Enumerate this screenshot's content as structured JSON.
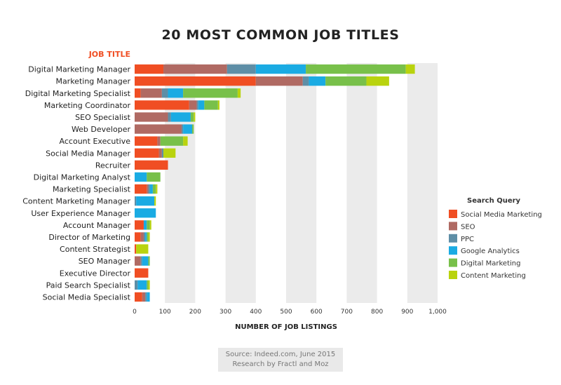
{
  "colors": {
    "Social Media Marketing": "#f04e23",
    "SEO": "#b06a63",
    "PPC": "#5e8ea6",
    "Google Analytics": "#1aabe3",
    "Digital Marketing": "#78c04a",
    "Content Marketing": "#b9d30e",
    "title": "#222222",
    "axis_title_accent": "#f04e23",
    "grid_band": "#ebebeb"
  },
  "chart_data": {
    "type": "bar",
    "orientation": "horizontal",
    "stacked": true,
    "title": "20 MOST COMMON JOB TITLES",
    "ylabel": "JOB TITLE",
    "xlabel": "NUMBER OF JOB LISTINGS",
    "xlim": [
      0,
      1000
    ],
    "xticks": [
      "0",
      "100",
      "200",
      "300",
      "400",
      "500",
      "600",
      "700",
      "800",
      "900",
      "1,000"
    ],
    "legend_title": "Search Query",
    "legend_position": "right",
    "grid": "alternating vertical bands",
    "categories": [
      "Digital Marketing Manager",
      "Marketing Manager",
      "Digital Marketing Specialist",
      "Marketing Coordinator",
      "SEO Specialist",
      "Web Developer",
      "Account Executive",
      "Social Media Manager",
      "Recruiter",
      "Digital Marketing Analyst",
      "Marketing Specialist",
      "Content Marketing Manager",
      "User Experience Manager",
      "Account Manager",
      "Director of Marketing",
      "Content Strategist",
      "SEO Manager",
      "Executive Director",
      "Paid Search Specialist",
      "Social Media Specialist"
    ],
    "series": [
      {
        "name": "Social Media Marketing",
        "values": [
          95,
          400,
          20,
          180,
          0,
          0,
          75,
          80,
          110,
          0,
          40,
          0,
          0,
          30,
          20,
          5,
          0,
          45,
          0,
          25
        ]
      },
      {
        "name": "SEO",
        "values": [
          210,
          155,
          70,
          25,
          110,
          155,
          10,
          10,
          0,
          0,
          5,
          0,
          0,
          0,
          10,
          0,
          20,
          0,
          0,
          10
        ]
      },
      {
        "name": "PPC",
        "values": [
          95,
          20,
          20,
          5,
          10,
          5,
          0,
          5,
          0,
          0,
          5,
          5,
          0,
          0,
          5,
          0,
          5,
          0,
          10,
          5
        ]
      },
      {
        "name": "Google Analytics",
        "values": [
          165,
          55,
          50,
          20,
          65,
          30,
          0,
          0,
          0,
          40,
          10,
          60,
          70,
          10,
          5,
          0,
          20,
          0,
          30,
          10
        ]
      },
      {
        "name": "Digital Marketing",
        "values": [
          330,
          135,
          180,
          45,
          10,
          5,
          75,
          0,
          0,
          45,
          10,
          0,
          0,
          10,
          5,
          0,
          5,
          0,
          5,
          0
        ]
      },
      {
        "name": "Content Marketing",
        "values": [
          30,
          75,
          10,
          5,
          5,
          0,
          15,
          40,
          0,
          0,
          5,
          5,
          0,
          5,
          5,
          40,
          0,
          0,
          5,
          0
        ]
      }
    ]
  },
  "source": {
    "line1": "Source: Indeed.com, June 2015",
    "line2": "Research by Fractl and Moz"
  }
}
